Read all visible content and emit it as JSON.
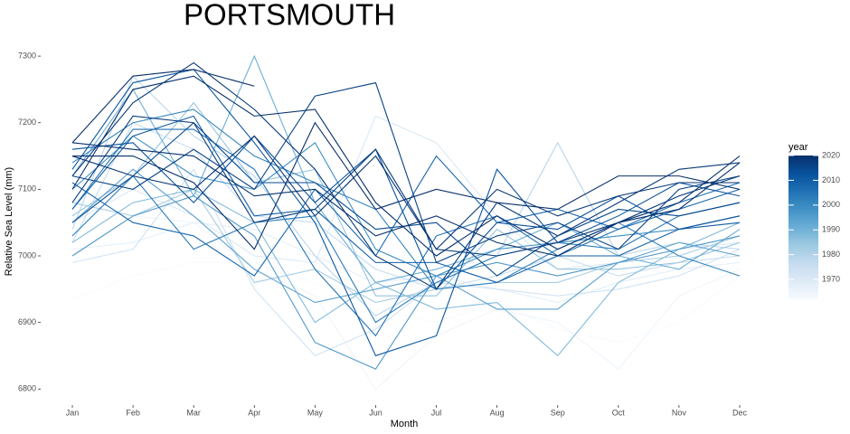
{
  "chart_data": {
    "type": "line",
    "title": "PORTSMOUTH",
    "x_label": "Month",
    "y_label": "Relative Sea Level (mm)",
    "categories": [
      "Jan",
      "Feb",
      "Mar",
      "Apr",
      "May",
      "Jun",
      "Jul",
      "Aug",
      "Sep",
      "Oct",
      "Nov",
      "Dec"
    ],
    "ylim": [
      6780,
      7330
    ],
    "yticks": [
      6800,
      6900,
      7000,
      7100,
      7200,
      7300
    ],
    "grid": false,
    "legend": {
      "title": "year",
      "position": "right",
      "limits": [
        1962,
        2020
      ],
      "ticks": [
        1970,
        1980,
        1990,
        2000,
        2010,
        2020
      ],
      "colors": [
        "#f7fbff",
        "#deebf7",
        "#c6dbef",
        "#9ecae1",
        "#6baed6",
        "#4292c6",
        "#2171b5",
        "#08519c",
        "#08306b"
      ]
    },
    "series": [
      {
        "color": "#f7fbff",
        "values": [
          6935,
          6970,
          6990,
          6990,
          6960,
          6920,
          6900,
          6930,
          6890,
          6870,
          6900,
          6970
        ]
      },
      {
        "color": "#eef5fc",
        "values": [
          7000,
          7060,
          7050,
          6980,
          6940,
          6800,
          6880,
          6920,
          6900,
          6830,
          6940,
          6980
        ]
      },
      {
        "color": "#e4eff9",
        "values": [
          7010,
          7020,
          7050,
          7040,
          7000,
          6960,
          6970,
          6950,
          6930,
          6960,
          6980,
          6990
        ]
      },
      {
        "color": "#dbe9f6",
        "values": [
          7050,
          7100,
          7060,
          7000,
          6990,
          7210,
          7170,
          7060,
          6980,
          6990,
          7010,
          7020
        ]
      },
      {
        "color": "#d1e3f3",
        "values": [
          6990,
          7010,
          7130,
          6950,
          6850,
          6890,
          6960,
          6950,
          6940,
          6950,
          6970,
          7010
        ]
      },
      {
        "color": "#c8ddf0",
        "values": [
          7020,
          7200,
          7160,
          7060,
          7050,
          6980,
          6950,
          6970,
          7000,
          6970,
          6990,
          7000
        ]
      },
      {
        "color": "#bad6eb",
        "values": [
          7040,
          7270,
          7180,
          7120,
          7000,
          6910,
          6960,
          7000,
          7170,
          7000,
          7020,
          7010
        ]
      },
      {
        "color": "#a8cee4",
        "values": [
          7080,
          7060,
          7100,
          6960,
          6980,
          6930,
          6950,
          6960,
          6960,
          6990,
          7000,
          7030
        ]
      },
      {
        "color": "#96c4de",
        "values": [
          7060,
          7120,
          7230,
          7110,
          7130,
          6940,
          6940,
          7040,
          6980,
          6980,
          6990,
          7020
        ]
      },
      {
        "color": "#82bbdb",
        "values": [
          7020,
          7080,
          7100,
          7050,
          6900,
          6960,
          6920,
          6930,
          6850,
          6960,
          7010,
          7050
        ]
      },
      {
        "color": "#6daed5",
        "values": [
          7120,
          7250,
          7090,
          7300,
          7080,
          6960,
          6980,
          7010,
          7050,
          7000,
          6980,
          7040
        ]
      },
      {
        "color": "#5ea2cf",
        "values": [
          7050,
          7130,
          7060,
          6980,
          6930,
          6950,
          6970,
          6920,
          6920,
          6990,
          7020,
          7000
        ]
      },
      {
        "color": "#4f98c9",
        "values": [
          7000,
          7060,
          7090,
          7030,
          6870,
          6830,
          6970,
          6990,
          6970,
          6990,
          7010,
          7030
        ]
      },
      {
        "color": "#4090c5",
        "values": [
          7100,
          7180,
          7120,
          7100,
          7170,
          7010,
          6970,
          7010,
          7020,
          7030,
          7040,
          7060
        ]
      },
      {
        "color": "#3585bf",
        "values": [
          7140,
          7200,
          7220,
          7150,
          7110,
          7070,
          6950,
          6960,
          7010,
          7050,
          7000,
          6970
        ]
      },
      {
        "color": "#2b7bba",
        "values": [
          7030,
          7120,
          7010,
          7050,
          7060,
          6900,
          6960,
          7000,
          7020,
          7010,
          7060,
          7080
        ]
      },
      {
        "color": "#2171b5",
        "values": [
          7070,
          7190,
          7190,
          7130,
          6980,
          6880,
          7030,
          7060,
          7000,
          7040,
          7080,
          7110
        ]
      },
      {
        "color": "#1967ad",
        "values": [
          7110,
          7050,
          7030,
          6970,
          7100,
          7000,
          7150,
          7050,
          7070,
          7040,
          7070,
          7100
        ]
      },
      {
        "color": "#125da6",
        "values": [
          7070,
          7180,
          7210,
          7060,
          7070,
          6990,
          6990,
          6960,
          7000,
          7000,
          7040,
          7050
        ]
      },
      {
        "color": "#0b559f",
        "values": [
          7130,
          7260,
          7280,
          7170,
          7050,
          6850,
          6880,
          7130,
          7020,
          7060,
          7110,
          7090
        ]
      },
      {
        "color": "#08519c",
        "values": [
          7160,
          7170,
          7080,
          7180,
          7080,
          7160,
          6950,
          7050,
          7040,
          7090,
          7040,
          7060
        ]
      },
      {
        "color": "#084990",
        "values": [
          7050,
          7120,
          7200,
          7110,
          7110,
          7040,
          7050,
          6970,
          7030,
          7070,
          7060,
          7080
        ]
      },
      {
        "color": "#084285",
        "values": [
          7120,
          7100,
          7160,
          7100,
          7240,
          7260,
          6990,
          7030,
          7050,
          7010,
          7100,
          7120
        ]
      },
      {
        "color": "#083b7b",
        "values": [
          7080,
          7210,
          7200,
          7050,
          7070,
          7160,
          7010,
          7000,
          7020,
          7050,
          7090,
          7120
        ]
      },
      {
        "color": "#083a79",
        "values": [
          7120,
          7230,
          7290,
          7220,
          7130,
          7000,
          6950,
          7080,
          7030,
          7080,
          7130,
          7140
        ]
      },
      {
        "color": "#083674",
        "values": [
          7150,
          7120,
          7100,
          7180,
          7060,
          7150,
          7010,
          7100,
          7060,
          7090,
          7110,
          7110
        ]
      },
      {
        "color": "#08336f",
        "values": [
          7170,
          7160,
          7150,
          7090,
          7100,
          7030,
          7060,
          7020,
          7000,
          7050,
          7080,
          7150
        ]
      },
      {
        "color": "#08316d",
        "values": [
          7100,
          7250,
          7270,
          7210,
          7220,
          7080,
          7000,
          7060,
          7010,
          7050,
          7070,
          7140
        ]
      },
      {
        "color": "#08306b",
        "values": [
          7150,
          7150,
          7110,
          7010,
          7200,
          7070,
          7100,
          7080,
          7070,
          7120,
          7120,
          7100
        ]
      },
      {
        "color": "#08306b",
        "values": [
          7170,
          7270,
          7280,
          7255,
          null,
          null,
          null,
          null,
          null,
          null,
          null,
          null
        ]
      }
    ]
  }
}
